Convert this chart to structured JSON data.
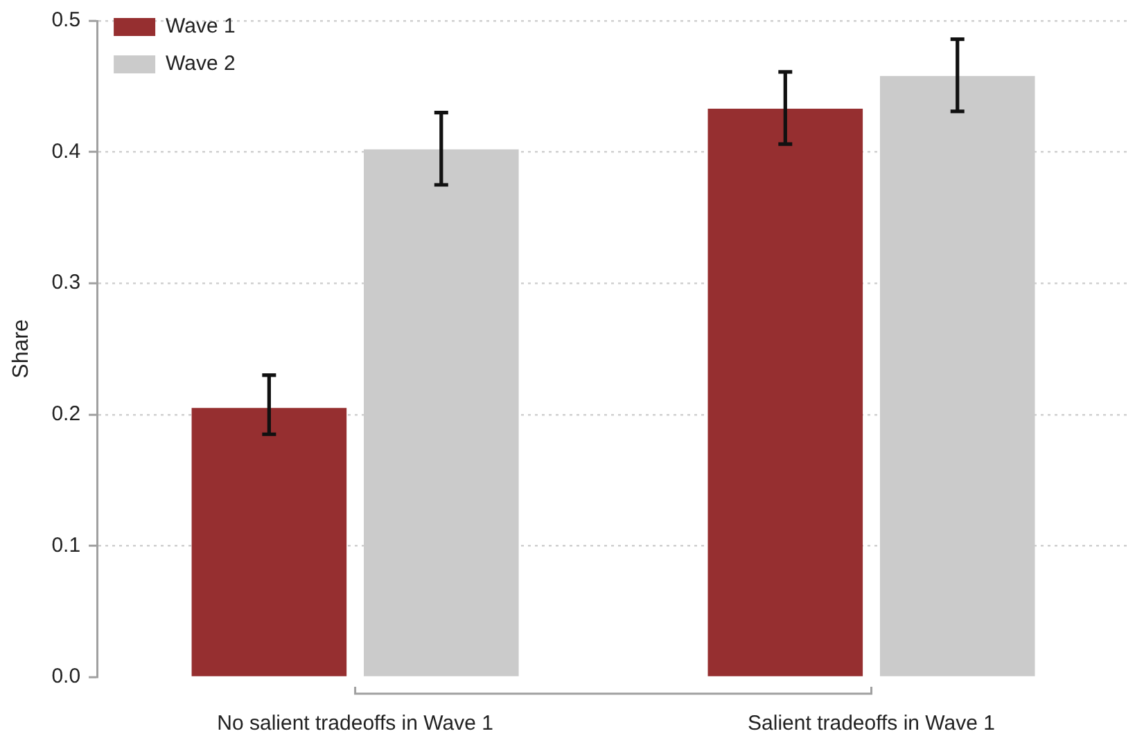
{
  "chart_data": {
    "type": "bar",
    "categories": [
      "No salient tradeoffs in Wave 1",
      "Salient tradeoffs in Wave 1"
    ],
    "series": [
      {
        "name": "Wave 1",
        "color": "#962f30",
        "values": [
          0.205,
          0.433
        ],
        "errors": [
          [
            0.185,
            0.23
          ],
          [
            0.406,
            0.461
          ]
        ]
      },
      {
        "name": "Wave 2",
        "color": "#cbcbcb",
        "values": [
          0.402,
          0.458
        ],
        "errors": [
          [
            0.375,
            0.43
          ],
          [
            0.431,
            0.486
          ]
        ]
      }
    ],
    "ylabel": "Share",
    "ylim": [
      0,
      0.5
    ],
    "yticks": [
      {
        "value": 0,
        "label": "0.0"
      },
      0.1,
      0.2,
      0.3,
      0.4,
      0.5
    ],
    "grid": "y",
    "legend": "top left"
  }
}
